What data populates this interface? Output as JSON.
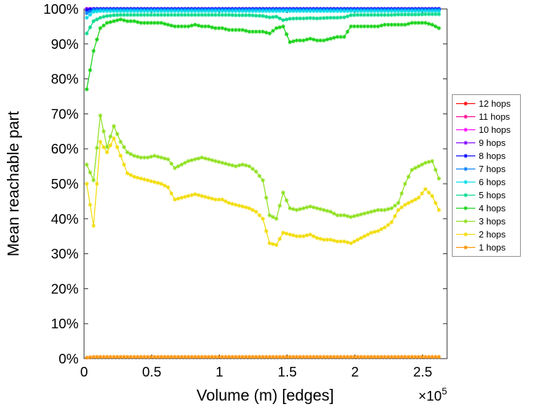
{
  "chart_data": {
    "type": "line",
    "title": "",
    "xlabel": "Volume (m) [edges]",
    "ylabel": "Mean reachable part",
    "x_scale_base": "×10",
    "x_scale_exp": "5",
    "x_scale": 100000,
    "xlim": [
      0,
      2.68
    ],
    "ylim": [
      0,
      100
    ],
    "grid": false,
    "marker": "asterisk",
    "legend_position": "right-outside",
    "x_ticks": [
      0,
      0.5,
      1,
      1.5,
      2,
      2.5
    ],
    "x_tick_labels": [
      "0",
      "0.5",
      "1",
      "1.5",
      "2",
      "2.5"
    ],
    "y_ticks": [
      0,
      10,
      20,
      30,
      40,
      50,
      60,
      70,
      80,
      90,
      100
    ],
    "y_tick_labels": [
      "0%",
      "10%",
      "20%",
      "30%",
      "40%",
      "50%",
      "60%",
      "70%",
      "80%",
      "90%",
      "100%"
    ],
    "x": [
      0.02,
      0.07,
      0.12,
      0.17,
      0.22,
      0.27,
      0.32,
      0.37,
      0.42,
      0.47,
      0.52,
      0.57,
      0.62,
      0.67,
      0.72,
      0.77,
      0.82,
      0.87,
      0.92,
      0.97,
      1.02,
      1.07,
      1.12,
      1.17,
      1.22,
      1.27,
      1.32,
      1.37,
      1.42,
      1.47,
      1.52,
      1.57,
      1.62,
      1.67,
      1.72,
      1.77,
      1.82,
      1.87,
      1.92,
      1.97,
      2.02,
      2.07,
      2.12,
      2.17,
      2.22,
      2.27,
      2.32,
      2.37,
      2.42,
      2.47,
      2.52,
      2.57,
      2.62
    ],
    "series": [
      {
        "name": "12 hops",
        "color": "#ff0000",
        "values": [
          100,
          100,
          100,
          100,
          100,
          100,
          100,
          100,
          100,
          100,
          100,
          100,
          100,
          100,
          100,
          100,
          100,
          100,
          100,
          100,
          100,
          100,
          100,
          100,
          100,
          100,
          100,
          100,
          100,
          100,
          100,
          100,
          100,
          100,
          100,
          100,
          100,
          100,
          100,
          100,
          100,
          100,
          100,
          100,
          100,
          100,
          100,
          100,
          100,
          100,
          100,
          100,
          100
        ]
      },
      {
        "name": "11 hops",
        "color": "#ff0090",
        "values": [
          100,
          100,
          100,
          100,
          100,
          100,
          100,
          100,
          100,
          100,
          100,
          100,
          100,
          100,
          100,
          100,
          100,
          100,
          100,
          100,
          100,
          100,
          100,
          100,
          100,
          100,
          100,
          100,
          100,
          100,
          100,
          100,
          100,
          100,
          100,
          100,
          100,
          100,
          100,
          100,
          100,
          100,
          100,
          100,
          100,
          100,
          100,
          100,
          100,
          100,
          100,
          100,
          100
        ]
      },
      {
        "name": "10 hops",
        "color": "#ff00ff",
        "values": [
          100,
          100,
          100,
          100,
          100,
          100,
          100,
          100,
          100,
          100,
          100,
          100,
          100,
          100,
          100,
          100,
          100,
          100,
          100,
          100,
          100,
          100,
          100,
          100,
          100,
          100,
          100,
          100,
          100,
          100,
          100,
          100,
          100,
          100,
          100,
          100,
          100,
          100,
          100,
          100,
          100,
          100,
          100,
          100,
          100,
          100,
          100,
          100,
          100,
          100,
          100,
          100,
          100
        ]
      },
      {
        "name": "9 hops",
        "color": "#8000ff",
        "values": [
          100,
          100,
          100,
          100,
          100,
          100,
          100,
          100,
          100,
          100,
          100,
          100,
          100,
          100,
          100,
          100,
          100,
          100,
          100,
          100,
          100,
          100,
          100,
          100,
          100,
          100,
          100,
          100,
          100,
          100,
          100,
          100,
          100,
          100,
          100,
          100,
          100,
          100,
          100,
          100,
          100,
          100,
          100,
          100,
          100,
          100,
          100,
          100,
          100,
          100,
          100,
          100,
          100
        ]
      },
      {
        "name": "8 hops",
        "color": "#0000ff",
        "values": [
          99.6,
          100,
          100,
          100,
          100,
          100,
          100,
          100,
          100,
          100,
          100,
          100,
          100,
          100,
          100,
          100,
          100,
          100,
          100,
          100,
          100,
          100,
          100,
          100,
          100,
          100,
          100,
          100,
          100,
          100,
          100,
          100,
          100,
          100,
          100,
          100,
          100,
          100,
          100,
          100,
          100,
          100,
          100,
          100,
          100,
          100,
          100,
          100,
          100,
          100,
          100,
          100,
          100
        ]
      },
      {
        "name": "7 hops",
        "color": "#0080ff",
        "values": [
          98.8,
          99.8,
          99.8,
          99.8,
          99.8,
          99.8,
          99.8,
          99.8,
          99.8,
          99.8,
          99.8,
          99.8,
          99.8,
          99.8,
          99.8,
          99.8,
          99.8,
          99.8,
          99.8,
          99.8,
          99.8,
          99.8,
          99.8,
          99.8,
          99.8,
          99.8,
          99.8,
          99.8,
          99.8,
          99.8,
          99.8,
          99.8,
          99.8,
          99.8,
          99.8,
          99.8,
          99.8,
          99.8,
          99.8,
          99.8,
          99.8,
          99.8,
          99.8,
          99.8,
          99.8,
          99.8,
          99.8,
          99.8,
          99.8,
          99.8,
          99.8,
          99.8,
          99.8
        ]
      },
      {
        "name": "6 hops",
        "color": "#00dce8",
        "values": [
          97.5,
          99.2,
          99.4,
          99.4,
          99.4,
          99.4,
          99.4,
          99.4,
          99.4,
          99.4,
          99.4,
          99.4,
          99.4,
          99.4,
          99.4,
          99.4,
          99.4,
          99.4,
          99.4,
          99.4,
          99.4,
          99.4,
          99.4,
          99.4,
          99.4,
          99.4,
          99.4,
          99.4,
          99.4,
          99.4,
          99.4,
          99.4,
          99.4,
          99.4,
          99.4,
          99.4,
          99.4,
          99.4,
          99.4,
          99.4,
          99.4,
          99.4,
          99.4,
          99.4,
          99.4,
          99.4,
          99.4,
          99.4,
          99.4,
          99.4,
          99.4,
          99.4,
          99.4
        ]
      },
      {
        "name": "5 hops",
        "color": "#00d98a",
        "values": [
          93,
          96.5,
          97.5,
          98,
          98.2,
          98.3,
          98.3,
          98.3,
          98.3,
          98.3,
          98.3,
          98.3,
          98.3,
          98.3,
          98.3,
          98.3,
          98.3,
          98.3,
          98.3,
          98.3,
          98.3,
          98.3,
          98.2,
          98.2,
          98.2,
          98.1,
          98,
          97.6,
          97.8,
          96.8,
          97.2,
          97.3,
          97.3,
          97.4,
          97.3,
          97.4,
          97.5,
          97.5,
          97.6,
          98.2,
          98.3,
          98.3,
          98.3,
          98.3,
          98.3,
          98.3,
          98.4,
          98.4,
          98.4,
          98.4,
          98.5,
          98.5,
          98.5
        ]
      },
      {
        "name": "4 hops",
        "color": "#16d216",
        "values": [
          77,
          88,
          94.5,
          96,
          96.5,
          97,
          96.5,
          96.5,
          96,
          96,
          96,
          96,
          95.5,
          95,
          95,
          95,
          95.5,
          95,
          95,
          94.5,
          94.5,
          94,
          94,
          94,
          93.5,
          93.5,
          93.5,
          93,
          94.5,
          95,
          90.5,
          91,
          91,
          91.5,
          91,
          91,
          91.5,
          92,
          92,
          95,
          95,
          95,
          95,
          95,
          95.5,
          95.5,
          95.5,
          95.5,
          96,
          96,
          96,
          95.5,
          94.5
        ]
      },
      {
        "name": "3 hops",
        "color": "#8ee01e",
        "values": [
          55.5,
          51,
          69.5,
          60.5,
          66.5,
          62,
          59,
          58,
          57.5,
          57.5,
          58,
          57.5,
          57,
          54.5,
          55.5,
          56.5,
          57,
          57.5,
          57,
          56.5,
          56,
          55.5,
          55,
          55.5,
          55,
          53.5,
          51,
          41,
          40,
          47.5,
          43,
          42.5,
          43,
          43.5,
          43,
          42.5,
          42,
          41,
          41,
          40.5,
          41,
          41.5,
          42,
          42.5,
          42.5,
          43,
          44.5,
          50,
          54,
          55,
          56,
          56.5,
          51.5
        ]
      },
      {
        "name": "2 hops",
        "color": "#f2dc05",
        "values": [
          50,
          38,
          62,
          59,
          63,
          58,
          53,
          52,
          51.5,
          51,
          50.5,
          50,
          49,
          45.5,
          46,
          46.5,
          47,
          46.5,
          46,
          45.5,
          45.5,
          44.5,
          44,
          43.5,
          43,
          42,
          40,
          33,
          32.5,
          36,
          35.5,
          35,
          35,
          35.5,
          34.5,
          34,
          34,
          33.5,
          33.5,
          33,
          34,
          35,
          36,
          36.5,
          37.5,
          39,
          42.5,
          44,
          45,
          46,
          48.5,
          46.5,
          42.5
        ]
      },
      {
        "name": "1 hops",
        "color": "#ff9100",
        "values": [
          0.3,
          0.5,
          0.5,
          0.5,
          0.5,
          0.5,
          0.5,
          0.5,
          0.5,
          0.5,
          0.5,
          0.5,
          0.5,
          0.5,
          0.5,
          0.5,
          0.5,
          0.5,
          0.5,
          0.5,
          0.5,
          0.5,
          0.5,
          0.5,
          0.5,
          0.5,
          0.5,
          0.5,
          0.5,
          0.5,
          0.5,
          0.5,
          0.5,
          0.5,
          0.5,
          0.5,
          0.5,
          0.5,
          0.5,
          0.5,
          0.5,
          0.5,
          0.5,
          0.5,
          0.5,
          0.5,
          0.5,
          0.5,
          0.5,
          0.5,
          0.5,
          0.5,
          0.5
        ]
      }
    ]
  }
}
